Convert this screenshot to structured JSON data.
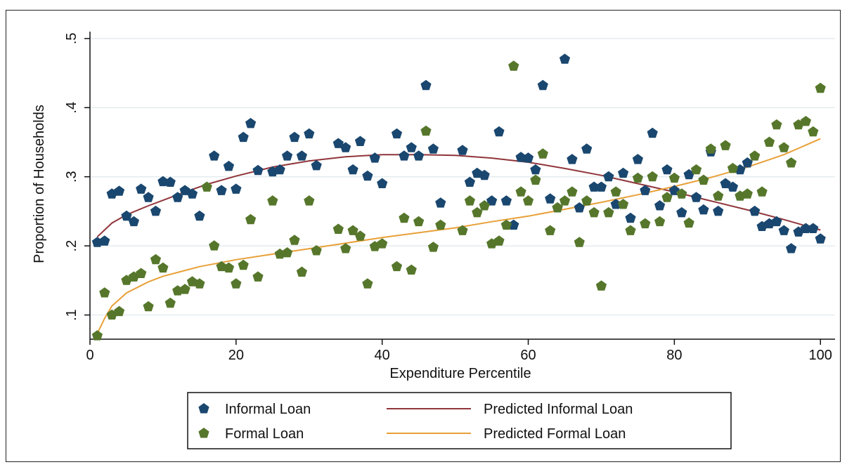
{
  "chart_data": {
    "type": "scatter",
    "title": "",
    "xlabel": "Expenditure Percentile",
    "ylabel": "Proportion of Households",
    "xlim": [
      0,
      102
    ],
    "ylim": [
      0.065,
      0.51
    ],
    "xticks": [
      0,
      20,
      40,
      60,
      80,
      100
    ],
    "xtick_labels": [
      "0",
      "20",
      "40",
      "60",
      "80",
      "100"
    ],
    "yticks": [
      0.1,
      0.2,
      0.3,
      0.4,
      0.5
    ],
    "ytick_labels": [
      ".1",
      ".2",
      ".3",
      ".4",
      ".5"
    ],
    "grid": true,
    "legend_position": "bottom",
    "series": [
      {
        "name": "Informal Loan",
        "kind": "scatter",
        "color": "#1a476f",
        "x": [
          1,
          2,
          3,
          4,
          5,
          6,
          7,
          8,
          9,
          10,
          11,
          12,
          13,
          14,
          15,
          17,
          18,
          19,
          20,
          21,
          22,
          23,
          25,
          26,
          27,
          28,
          29,
          30,
          31,
          34,
          35,
          36,
          37,
          38,
          39,
          40,
          42,
          43,
          44,
          45,
          46,
          47,
          48,
          51,
          52,
          53,
          54,
          55,
          56,
          57,
          58,
          59,
          60,
          61,
          62,
          63,
          64,
          65,
          66,
          67,
          68,
          69,
          70,
          71,
          72,
          73,
          74,
          75,
          76,
          77,
          78,
          79,
          80,
          81,
          82,
          83,
          84,
          85,
          86,
          87,
          88,
          89,
          90,
          91,
          92,
          93,
          94,
          95,
          96,
          97,
          98,
          99,
          100
        ],
        "y": [
          0.205,
          0.207,
          0.275,
          0.279,
          0.243,
          0.235,
          0.282,
          0.27,
          0.25,
          0.293,
          0.292,
          0.27,
          0.28,
          0.275,
          0.243,
          0.33,
          0.28,
          0.315,
          0.282,
          0.357,
          0.377,
          0.309,
          0.307,
          0.31,
          0.33,
          0.357,
          0.33,
          0.362,
          0.316,
          0.348,
          0.342,
          0.31,
          0.351,
          0.301,
          0.327,
          0.29,
          0.362,
          0.33,
          0.342,
          0.33,
          0.432,
          0.34,
          0.262,
          0.338,
          0.292,
          0.305,
          0.302,
          0.265,
          0.365,
          0.265,
          0.23,
          0.328,
          0.327,
          0.31,
          0.432,
          0.268,
          0.255,
          0.47,
          0.325,
          0.255,
          0.34,
          0.285,
          0.285,
          0.3,
          0.26,
          0.305,
          0.24,
          0.325,
          0.28,
          0.363,
          0.258,
          0.31,
          0.28,
          0.248,
          0.303,
          0.27,
          0.252,
          0.336,
          0.25,
          0.29,
          0.285,
          0.31,
          0.32,
          0.25,
          0.228,
          0.232,
          0.235,
          0.222,
          0.196,
          0.22,
          0.225,
          0.225,
          0.21
        ]
      },
      {
        "name": "Formal Loan",
        "kind": "scatter",
        "color": "#56772b",
        "x": [
          1,
          2,
          3,
          4,
          5,
          6,
          7,
          8,
          9,
          10,
          11,
          12,
          13,
          14,
          15,
          16,
          17,
          18,
          19,
          20,
          21,
          22,
          23,
          25,
          26,
          27,
          28,
          29,
          30,
          31,
          34,
          35,
          36,
          37,
          38,
          39,
          40,
          42,
          43,
          44,
          45,
          46,
          47,
          48,
          51,
          52,
          53,
          54,
          55,
          56,
          57,
          58,
          59,
          60,
          61,
          62,
          63,
          64,
          65,
          66,
          67,
          68,
          69,
          70,
          71,
          72,
          73,
          74,
          75,
          76,
          77,
          78,
          79,
          80,
          81,
          82,
          83,
          84,
          85,
          86,
          87,
          88,
          89,
          90,
          91,
          92,
          93,
          94,
          95,
          96,
          97,
          98,
          99,
          100
        ],
        "y": [
          0.07,
          0.132,
          0.1,
          0.105,
          0.15,
          0.155,
          0.16,
          0.112,
          0.18,
          0.168,
          0.117,
          0.135,
          0.137,
          0.148,
          0.145,
          0.285,
          0.2,
          0.17,
          0.168,
          0.145,
          0.172,
          0.238,
          0.155,
          0.265,
          0.188,
          0.19,
          0.208,
          0.162,
          0.265,
          0.193,
          0.224,
          0.196,
          0.222,
          0.214,
          0.145,
          0.199,
          0.203,
          0.17,
          0.24,
          0.165,
          0.235,
          0.366,
          0.198,
          0.23,
          0.222,
          0.265,
          0.248,
          0.258,
          0.203,
          0.207,
          0.23,
          0.46,
          0.278,
          0.265,
          0.295,
          0.333,
          0.222,
          0.255,
          0.265,
          0.278,
          0.205,
          0.265,
          0.248,
          0.142,
          0.248,
          0.278,
          0.26,
          0.222,
          0.298,
          0.232,
          0.3,
          0.235,
          0.27,
          0.298,
          0.275,
          0.233,
          0.31,
          0.295,
          0.34,
          0.272,
          0.345,
          0.312,
          0.272,
          0.275,
          0.33,
          0.278,
          0.35,
          0.375,
          0.342,
          0.32,
          0.375,
          0.38,
          0.365,
          0.428
        ]
      },
      {
        "name": "Predicted Informal Loan",
        "kind": "line",
        "color": "#90353b",
        "x": [
          1,
          3,
          5,
          8,
          10,
          13,
          16,
          20,
          25,
          30,
          35,
          40,
          45,
          50,
          55,
          60,
          65,
          70,
          75,
          80,
          85,
          90,
          95,
          100
        ],
        "y": [
          0.213,
          0.233,
          0.245,
          0.258,
          0.266,
          0.278,
          0.289,
          0.301,
          0.314,
          0.323,
          0.329,
          0.332,
          0.332,
          0.331,
          0.327,
          0.321,
          0.312,
          0.302,
          0.29,
          0.278,
          0.265,
          0.252,
          0.238,
          0.223
        ]
      },
      {
        "name": "Predicted Formal Loan",
        "kind": "line",
        "color": "#e8a038",
        "x": [
          1,
          2,
          3,
          5,
          8,
          10,
          15,
          20,
          25,
          30,
          35,
          40,
          45,
          50,
          55,
          60,
          65,
          70,
          75,
          80,
          85,
          90,
          95,
          100
        ],
        "y": [
          0.073,
          0.095,
          0.113,
          0.132,
          0.148,
          0.156,
          0.17,
          0.18,
          0.188,
          0.196,
          0.204,
          0.212,
          0.219,
          0.226,
          0.235,
          0.243,
          0.253,
          0.263,
          0.274,
          0.286,
          0.299,
          0.314,
          0.332,
          0.355
        ]
      }
    ]
  }
}
